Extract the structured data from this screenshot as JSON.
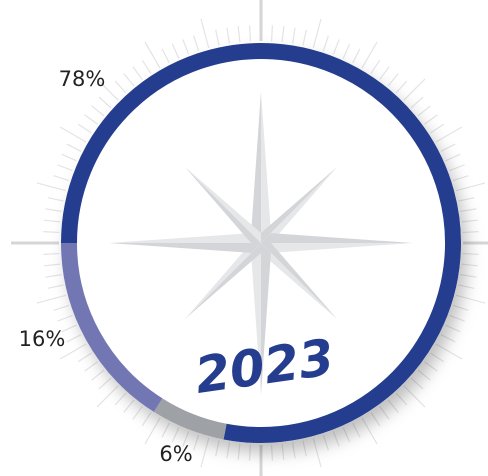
{
  "chart_data": {
    "type": "donut",
    "title": "2023",
    "values": [
      78,
      6,
      16
    ],
    "value_labels": [
      "78%",
      "6%",
      "16%"
    ],
    "colors": [
      "#253d8e",
      "#9ea1a6",
      "#7277b3"
    ]
  }
}
